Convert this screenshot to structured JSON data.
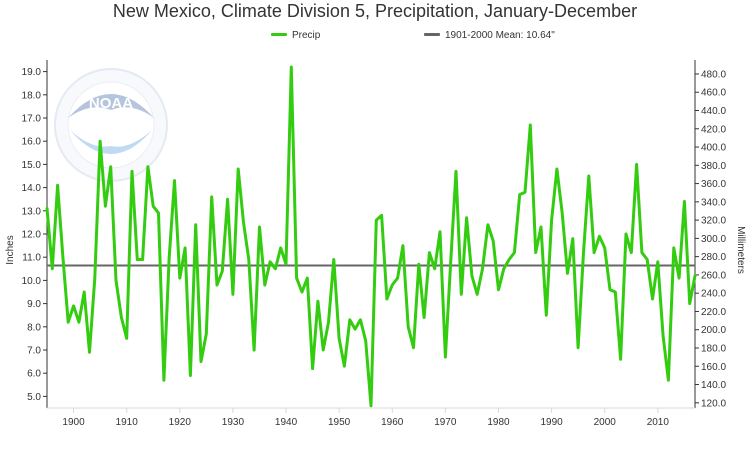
{
  "title": "New Mexico, Climate Division 5, Precipitation, January-December",
  "colors": {
    "precip": "#33cc11",
    "mean": "#666666",
    "axis": "#333333",
    "grid": "#d9d9d9"
  },
  "logo": {
    "text": "NOAA"
  },
  "chart_data": {
    "type": "line",
    "title": "New Mexico, Climate Division 5, Precipitation, January-December",
    "ylabel": "Inches",
    "ylabel_right": "Millimeters",
    "xlabel": "",
    "xlim": [
      1895,
      2017
    ],
    "ylim": [
      4.5,
      19.5
    ],
    "xticks": [
      "1900",
      "1910",
      "1920",
      "1930",
      "1940",
      "1950",
      "1960",
      "1970",
      "1980",
      "1990",
      "2000",
      "2010"
    ],
    "yticks": [
      "5.0",
      "6.0",
      "7.0",
      "8.0",
      "9.0",
      "10.0",
      "11.0",
      "12.0",
      "13.0",
      "14.0",
      "15.0",
      "16.0",
      "17.0",
      "18.0",
      "19.0"
    ],
    "yticks_right": [
      "120.0",
      "140.0",
      "160.0",
      "180.0",
      "200.0",
      "220.0",
      "240.0",
      "260.0",
      "280.0",
      "300.0",
      "320.0",
      "340.0",
      "360.0",
      "380.0",
      "400.0",
      "420.0",
      "440.0",
      "460.0",
      "480.0"
    ],
    "grid": false,
    "legend_position": "top-center",
    "series": [
      {
        "name": "Precip",
        "x": [
          1895,
          1896,
          1897,
          1898,
          1899,
          1900,
          1901,
          1902,
          1903,
          1904,
          1905,
          1906,
          1907,
          1908,
          1909,
          1910,
          1911,
          1912,
          1913,
          1914,
          1915,
          1916,
          1917,
          1918,
          1919,
          1920,
          1921,
          1922,
          1923,
          1924,
          1925,
          1926,
          1927,
          1928,
          1929,
          1930,
          1931,
          1932,
          1933,
          1934,
          1935,
          1936,
          1937,
          1938,
          1939,
          1940,
          1941,
          1942,
          1943,
          1944,
          1945,
          1946,
          1947,
          1948,
          1949,
          1950,
          1951,
          1952,
          1953,
          1954,
          1955,
          1956,
          1957,
          1958,
          1959,
          1960,
          1961,
          1962,
          1963,
          1964,
          1965,
          1966,
          1967,
          1968,
          1969,
          1970,
          1971,
          1972,
          1973,
          1974,
          1975,
          1976,
          1977,
          1978,
          1979,
          1980,
          1981,
          1982,
          1983,
          1984,
          1985,
          1986,
          1987,
          1988,
          1989,
          1990,
          1991,
          1992,
          1993,
          1994,
          1995,
          1996,
          1997,
          1998,
          1999,
          2000,
          2001,
          2002,
          2003,
          2004,
          2005,
          2006,
          2007,
          2008,
          2009,
          2010,
          2011,
          2012,
          2013,
          2014,
          2015,
          2016,
          2017
        ],
        "values": [
          13.1,
          10.5,
          14.1,
          11.0,
          8.2,
          8.9,
          8.2,
          9.5,
          6.9,
          10.1,
          16.0,
          13.2,
          14.9,
          10.0,
          8.4,
          7.5,
          14.7,
          10.9,
          10.9,
          14.9,
          13.2,
          12.9,
          5.7,
          11.0,
          14.3,
          10.1,
          11.4,
          5.9,
          12.4,
          6.5,
          7.7,
          13.6,
          9.8,
          10.4,
          13.5,
          9.4,
          14.8,
          12.5,
          10.9,
          7.0,
          12.3,
          9.8,
          10.8,
          10.5,
          11.4,
          10.7,
          19.2,
          10.1,
          9.5,
          10.1,
          6.2,
          9.1,
          7.0,
          8.2,
          10.9,
          7.5,
          6.3,
          8.3,
          7.9,
          8.3,
          7.4,
          4.6,
          12.6,
          12.8,
          9.2,
          9.8,
          10.1,
          11.5,
          8.0,
          7.1,
          10.7,
          8.4,
          11.2,
          10.5,
          12.1,
          6.7,
          10.8,
          14.7,
          9.4,
          12.7,
          10.2,
          9.4,
          10.5,
          12.4,
          11.7,
          9.6,
          10.5,
          10.9,
          11.2,
          13.7,
          13.8,
          16.7,
          11.2,
          12.3,
          8.5,
          12.6,
          14.8,
          12.9,
          10.3,
          11.8,
          7.1,
          11.2,
          14.5,
          11.2,
          11.9,
          11.4,
          9.6,
          9.5,
          6.6,
          12.0,
          11.2,
          15.0,
          11.2,
          10.9,
          9.2,
          10.8,
          7.6,
          5.7,
          11.4,
          10.1,
          13.4,
          9.0,
          10.2
        ]
      },
      {
        "name": "1901-2000 Mean: 10.64\"",
        "value": 10.64
      }
    ]
  }
}
